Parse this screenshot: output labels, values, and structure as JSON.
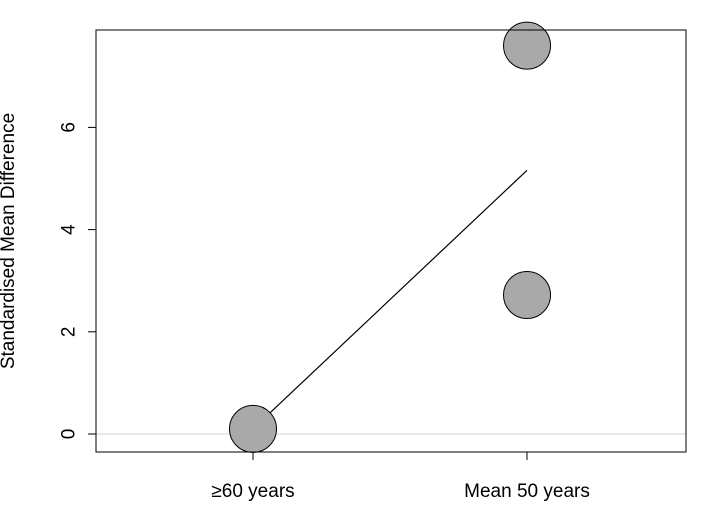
{
  "chart_data": {
    "type": "scatter",
    "ylabel": "Standardised Mean Difference",
    "xlabel": "",
    "categories": [
      "≥60 years",
      "Mean 50 years"
    ],
    "yticks": [
      0,
      2,
      4,
      6
    ],
    "ylim": [
      -0.35,
      7.9
    ],
    "points": [
      {
        "category": "≥60 years",
        "y": 0.1
      },
      {
        "category": "Mean 50 years",
        "y": 7.6
      },
      {
        "category": "Mean 50 years",
        "y": 2.72
      }
    ],
    "fit_line": {
      "from": {
        "category": "≥60 years",
        "y": 0.1
      },
      "to": {
        "category": "Mean 50 years",
        "y": 5.16
      }
    },
    "reference_line_y": 0,
    "colors": {
      "point_fill": "#a9a9a9",
      "point_stroke": "#000000",
      "reference_line": "#d3d3d3",
      "fit_line": "#000000"
    }
  }
}
